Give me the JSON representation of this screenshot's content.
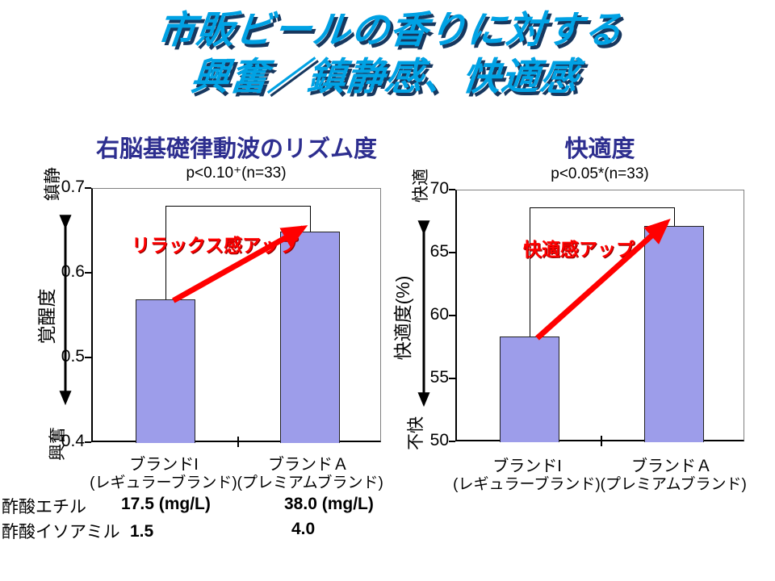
{
  "slide": {
    "title_line1": "市販ビールの香りに対する",
    "title_line2": "興奮／鎮静感、快適感"
  },
  "colors": {
    "title_fill": "#00A2E4",
    "title_shadow": "#17375E",
    "chart_title": "#2D2E8F",
    "bar_fill": "#9D9DEA",
    "bar_border": "#222222",
    "annotation_red": "#FF0000"
  },
  "chart_data": [
    {
      "type": "bar",
      "title": "右脳基礎律動波のリズム度",
      "significance_label": "p<0.10⁺(n=33)",
      "annotation": "リラックス感アップ",
      "categories": [
        "ブランドI",
        "ブランドＡ"
      ],
      "category_sublabels": "(レギュラーブランド)(プレミアムブランド)",
      "values": [
        0.57,
        0.65
      ],
      "ylim": [
        0.4,
        0.7
      ],
      "yticks": [
        0.4,
        0.5,
        0.6,
        0.7
      ],
      "ytick_labels": [
        "0.4",
        "0.5",
        "0.6",
        "0.7"
      ],
      "ylabel": "覚醒度",
      "y_top_label": "鎮静",
      "y_bottom_label": "興奮",
      "xlabel": "",
      "grid": false,
      "legend": "none"
    },
    {
      "type": "bar",
      "title": "快適度",
      "significance_label": "p<0.05*(n=33)",
      "annotation": "快適感アップ",
      "categories": [
        "ブランドI",
        "ブランドＡ"
      ],
      "category_sublabels": "(レギュラーブランド)(プレミアムブランド)",
      "values": [
        58.4,
        67.2
      ],
      "ylim": [
        50,
        70
      ],
      "yticks": [
        50,
        55,
        60,
        65,
        70
      ],
      "ytick_labels": [
        "50",
        "55",
        "60",
        "65",
        "70"
      ],
      "ylabel": "快適度(%)",
      "y_top_label": "快適",
      "y_bottom_label": "不快",
      "xlabel": "",
      "grid": false,
      "legend": "none"
    }
  ],
  "table": {
    "rows": [
      {
        "label": "酢酸エチル",
        "brand_i_value": "17.5 (mg/L)",
        "brand_a_value": "38.0 (mg/L)"
      },
      {
        "label": "酢酸イソアミル",
        "brand_i_value": "1.5",
        "brand_a_value": "4.0"
      }
    ]
  }
}
